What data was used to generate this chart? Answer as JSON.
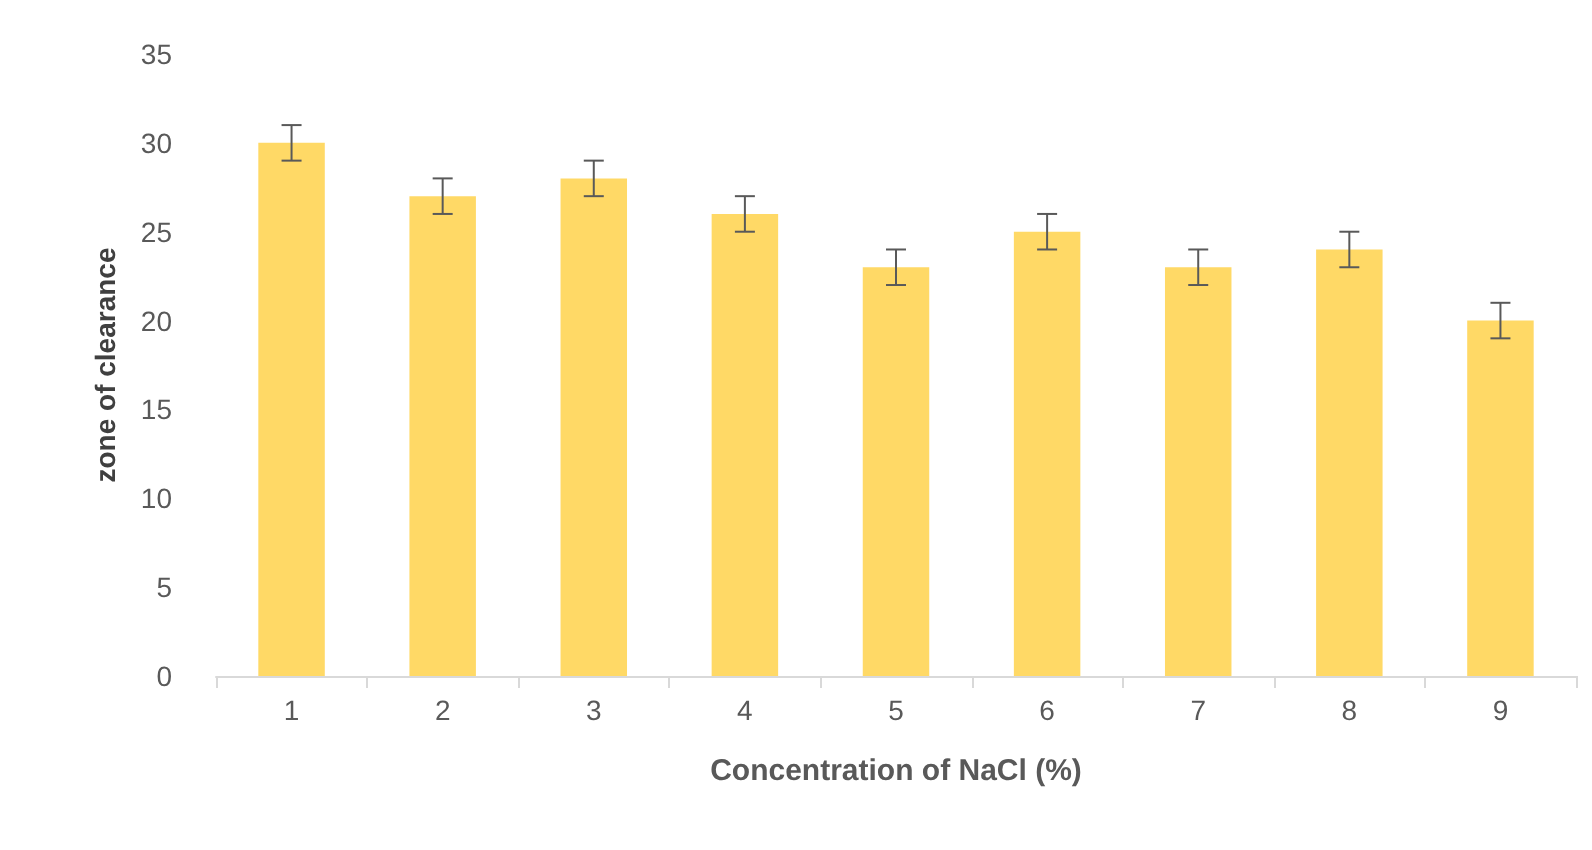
{
  "chart_data": {
    "type": "bar",
    "xlabel": "Concentration of NaCl (%)",
    "ylabel": "zone of clearance",
    "categories": [
      "1",
      "2",
      "3",
      "4",
      "5",
      "6",
      "7",
      "8",
      "9"
    ],
    "values": [
      30,
      27,
      28,
      26,
      23,
      25,
      23,
      24,
      20
    ],
    "errors": [
      1,
      1,
      1,
      1,
      1,
      1,
      1,
      1,
      1
    ],
    "color": "#ffd966",
    "ylim": [
      0,
      35
    ],
    "yticks": [
      0,
      5,
      10,
      15,
      20,
      25,
      30,
      35
    ],
    "grid": false
  }
}
